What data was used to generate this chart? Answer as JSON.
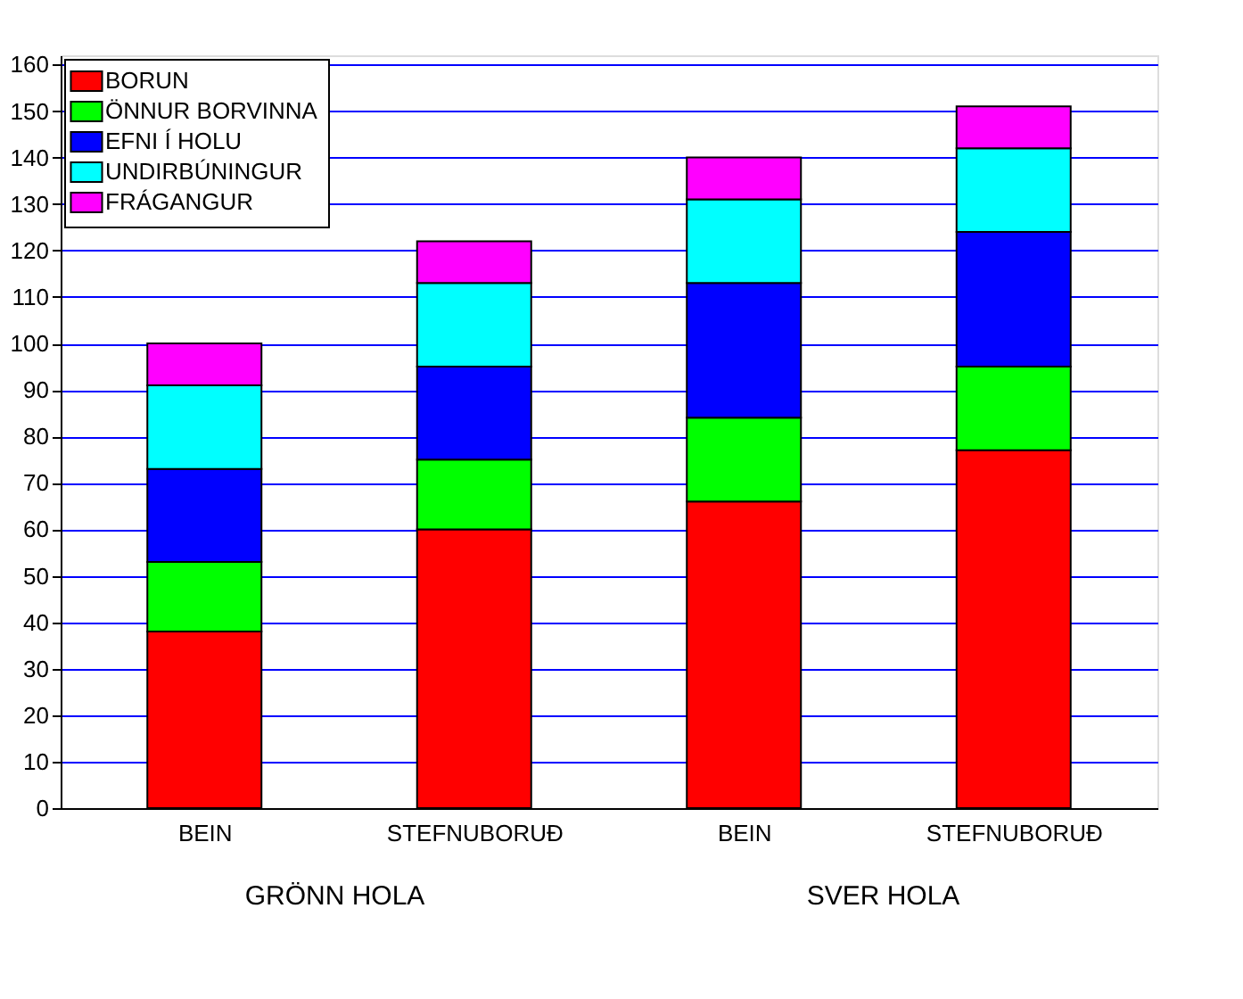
{
  "chart_data": {
    "type": "bar",
    "stacked": true,
    "categories": [
      "BEIN",
      "STEFNUBORUÐ",
      "BEIN",
      "STEFNUBORUÐ"
    ],
    "series": [
      {
        "name": "BORUN",
        "color": "#ff0000",
        "values": [
          38,
          60,
          66,
          77
        ]
      },
      {
        "name": "ÖNNUR BORVINNA",
        "color": "#00ff00",
        "values": [
          15,
          15,
          18,
          18
        ]
      },
      {
        "name": "EFNI Í HOLU",
        "color": "#0000ff",
        "values": [
          20,
          20,
          29,
          29
        ]
      },
      {
        "name": "UNDIRBÚNINGUR",
        "color": "#00ffff",
        "values": [
          18,
          18,
          18,
          18
        ]
      },
      {
        "name": "FRÁGANGUR",
        "color": "#ff00ff",
        "values": [
          9,
          9,
          9,
          9
        ]
      }
    ],
    "ylim": [
      0,
      162
    ],
    "yticks": [
      0,
      10,
      20,
      30,
      40,
      50,
      60,
      70,
      80,
      90,
      100,
      110,
      120,
      130,
      140,
      150,
      160
    ],
    "grid": "y",
    "legend": "top left",
    "annotations": [
      "GRÖNN HOLA",
      "SVER HOLA"
    ]
  }
}
